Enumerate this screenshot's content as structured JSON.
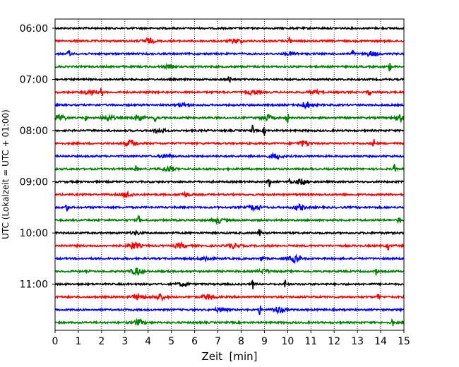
{
  "chart_data": {
    "type": "line",
    "title": "",
    "xlabel": "Zeit  [min]",
    "ylabel": "UTC (Lokalzeit = UTC + 01:00)",
    "xlim": [
      0,
      15
    ],
    "x_ticks": [
      0,
      1,
      2,
      3,
      4,
      5,
      6,
      7,
      8,
      9,
      10,
      11,
      12,
      13,
      14,
      15
    ],
    "y_tick_labels": [
      "06:00",
      "07:00",
      "08:00",
      "09:00",
      "10:00",
      "11:00"
    ],
    "grid": "vertical-dotted",
    "trace_interval_minutes": 15,
    "color_cycle": [
      "#000000",
      "#ff0000",
      "#0000ff",
      "#008000"
    ],
    "traces": [
      {
        "start": "06:00",
        "color": "#000000",
        "events": []
      },
      {
        "start": "06:15",
        "color": "#ff0000",
        "events": [
          [
            4.0,
            0.55
          ],
          [
            7.8,
            0.45
          ],
          [
            10.1,
            0.9
          ]
        ]
      },
      {
        "start": "06:30",
        "color": "#0000ff",
        "events": [
          [
            0.6,
            1.0
          ],
          [
            10.2,
            0.35
          ],
          [
            12.8,
            0.9
          ],
          [
            13.6,
            0.5
          ]
        ]
      },
      {
        "start": "06:45",
        "color": "#008000",
        "events": [
          [
            4.9,
            0.3
          ],
          [
            14.4,
            0.8
          ]
        ]
      },
      {
        "start": "07:00",
        "color": "#000000",
        "events": [
          [
            7.5,
            0.9
          ]
        ]
      },
      {
        "start": "07:15",
        "color": "#ff0000",
        "events": [
          [
            1.5,
            0.5
          ],
          [
            2.0,
            0.9
          ],
          [
            8.5,
            0.4
          ],
          [
            11.2,
            0.35
          ],
          [
            13.5,
            0.9
          ]
        ]
      },
      {
        "start": "07:30",
        "color": "#0000ff",
        "events": [
          [
            5.5,
            0.3
          ],
          [
            10.8,
            0.7
          ]
        ]
      },
      {
        "start": "07:45",
        "color": "#008000",
        "events": [
          [
            0.2,
            0.7
          ],
          [
            1.3,
            0.8
          ],
          [
            2.3,
            0.6
          ],
          [
            3.6,
            0.7
          ],
          [
            4.3,
            0.9
          ],
          [
            9.1,
            0.6
          ],
          [
            10.0,
            0.8
          ],
          [
            14.9,
            0.7
          ]
        ]
      },
      {
        "start": "08:00",
        "color": "#000000",
        "events": [
          [
            4.5,
            0.45
          ],
          [
            8.5,
            1.0
          ],
          [
            9.0,
            0.8
          ]
        ]
      },
      {
        "start": "08:15",
        "color": "#ff0000",
        "events": [
          [
            3.3,
            0.7
          ],
          [
            10.7,
            0.6
          ],
          [
            13.7,
            1.0
          ]
        ]
      },
      {
        "start": "08:30",
        "color": "#0000ff",
        "events": [
          [
            4.8,
            0.4
          ],
          [
            8.4,
            0.8
          ],
          [
            9.5,
            0.6
          ]
        ]
      },
      {
        "start": "08:45",
        "color": "#008000",
        "events": [
          [
            3.5,
            0.8
          ],
          [
            4.9,
            0.6
          ],
          [
            14.6,
            0.8
          ]
        ]
      },
      {
        "start": "09:00",
        "color": "#000000",
        "events": [
          [
            9.2,
            0.9
          ],
          [
            10.1,
            0.8
          ],
          [
            10.6,
            0.6
          ]
        ]
      },
      {
        "start": "09:15",
        "color": "#ff0000",
        "events": [
          [
            3.1,
            0.6
          ],
          [
            5.6,
            0.35
          ]
        ]
      },
      {
        "start": "09:30",
        "color": "#0000ff",
        "events": [
          [
            0.5,
            0.8
          ],
          [
            8.6,
            0.6
          ],
          [
            10.5,
            0.6
          ]
        ]
      },
      {
        "start": "09:45",
        "color": "#008000",
        "events": [
          [
            3.6,
            0.8
          ],
          [
            7.0,
            0.6
          ],
          [
            14.8,
            0.9
          ]
        ]
      },
      {
        "start": "10:00",
        "color": "#000000",
        "events": [
          [
            8.8,
            1.0
          ],
          [
            3.5,
            0.3
          ]
        ]
      },
      {
        "start": "10:15",
        "color": "#ff0000",
        "events": [
          [
            3.4,
            0.7
          ],
          [
            5.4,
            0.5
          ],
          [
            7.7,
            0.5
          ],
          [
            14.3,
            0.9
          ]
        ]
      },
      {
        "start": "10:30",
        "color": "#0000ff",
        "events": [
          [
            6.5,
            0.5
          ],
          [
            8.9,
            0.8
          ],
          [
            10.3,
            0.7
          ]
        ]
      },
      {
        "start": "10:45",
        "color": "#008000",
        "events": [
          [
            3.5,
            0.7
          ],
          [
            9.0,
            0.4
          ],
          [
            13.8,
            0.8
          ]
        ]
      },
      {
        "start": "11:00",
        "color": "#000000",
        "events": [
          [
            5.5,
            0.4
          ],
          [
            8.5,
            0.9
          ],
          [
            9.9,
            0.8
          ]
        ]
      },
      {
        "start": "11:15",
        "color": "#ff0000",
        "events": [
          [
            3.6,
            0.6
          ],
          [
            4.5,
            0.6
          ],
          [
            6.6,
            0.6
          ],
          [
            13.9,
            0.8
          ]
        ]
      },
      {
        "start": "11:30",
        "color": "#0000ff",
        "events": [
          [
            7.1,
            0.4
          ],
          [
            8.8,
            0.8
          ],
          [
            9.6,
            0.7
          ]
        ]
      },
      {
        "start": "11:45",
        "color": "#008000",
        "events": [
          [
            3.6,
            0.6
          ],
          [
            14.5,
            0.8
          ]
        ]
      }
    ]
  }
}
